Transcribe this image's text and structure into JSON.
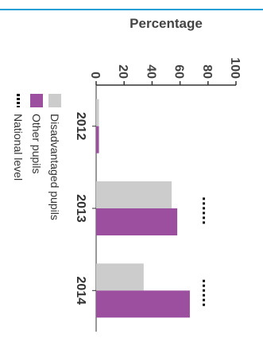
{
  "chart_data": {
    "type": "bar",
    "orientation": "horizontal",
    "title": "",
    "xlabel": "",
    "ylabel": "Percentage",
    "ylim": [
      0,
      100
    ],
    "yticks": [
      "0",
      "20",
      "40",
      "60",
      "80",
      "100"
    ],
    "categories": [
      "2012",
      "2013",
      "2014"
    ],
    "series": [
      {
        "name": "Disadvantaged pupils",
        "values": [
          2,
          54,
          34
        ],
        "color": "#cccccc"
      },
      {
        "name": "Other pupils",
        "values": [
          2,
          58,
          67
        ],
        "color": "#9b4f9e"
      }
    ],
    "national_level": {
      "name": "National level",
      "values": [
        null,
        77,
        77
      ],
      "style": "dotted",
      "color": "#111111"
    },
    "grid": false,
    "legend_position": "left"
  },
  "colors": {
    "accent_rule": "#1aa0d2",
    "axis": "#333333"
  }
}
